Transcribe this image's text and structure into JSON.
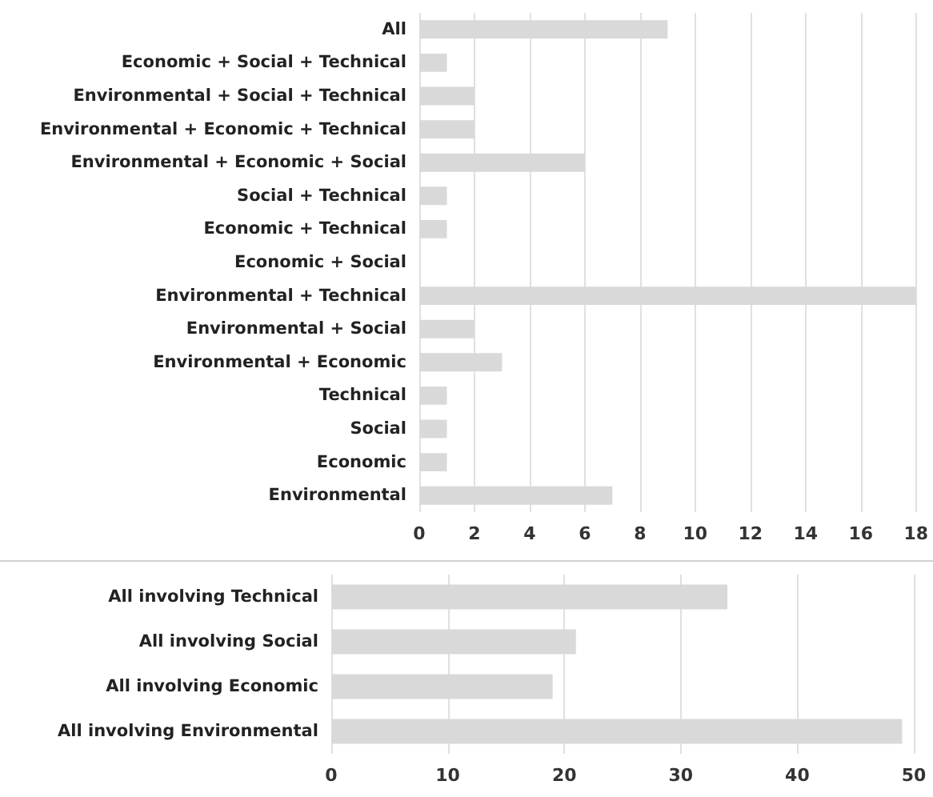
{
  "chart_data": [
    {
      "type": "bar",
      "orientation": "horizontal",
      "categories": [
        "All",
        "Economic + Social + Technical",
        "Environmental + Social + Technical",
        "Environmental + Economic + Technical",
        "Environmental + Economic + Social",
        "Social + Technical",
        "Economic + Technical",
        "Economic + Social",
        "Environmental + Technical",
        "Environmental + Social",
        "Environmental + Economic",
        "Technical",
        "Social",
        "Economic",
        "Environmental"
      ],
      "series": [
        {
          "color": "#d9d9d9",
          "values": [
            9,
            1,
            2,
            2,
            6,
            1,
            1,
            0,
            18,
            2,
            3,
            1,
            1,
            1,
            7
          ]
        }
      ],
      "xlim": [
        0,
        18
      ],
      "xticks": [
        0,
        2,
        4,
        6,
        8,
        10,
        12,
        14,
        16,
        18
      ],
      "grid": "x"
    },
    {
      "type": "bar",
      "orientation": "horizontal",
      "categories": [
        "All involving Technical",
        "All involving Social",
        "All involving Economic",
        "All involving Environmental"
      ],
      "series": [
        {
          "color": "#d9d9d9",
          "values": [
            34,
            21,
            19,
            49
          ]
        }
      ],
      "xlim": [
        0,
        50
      ],
      "xticks": [
        0,
        10,
        20,
        30,
        40,
        50
      ],
      "grid": "x"
    }
  ]
}
